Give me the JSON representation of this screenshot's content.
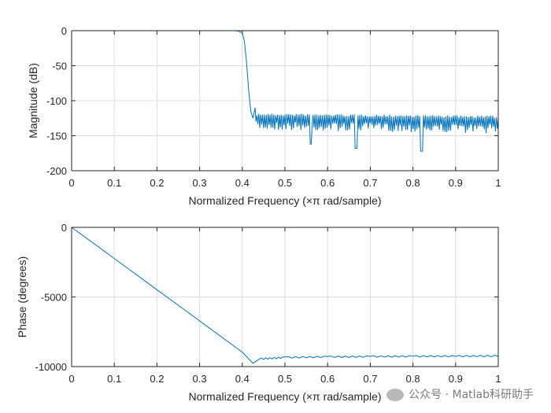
{
  "chart_data": [
    {
      "type": "line",
      "xlabel": "Normalized Frequency  (×π rad/sample)",
      "ylabel": "Magnitude (dB)",
      "xlim": [
        0,
        1
      ],
      "ylim": [
        -200,
        0
      ],
      "xticks": [
        "0",
        "0.1",
        "0.2",
        "0.3",
        "0.4",
        "0.5",
        "0.6",
        "0.7",
        "0.8",
        "0.9",
        "1"
      ],
      "yticks": [
        "0",
        "-50",
        "-100",
        "-150",
        "-200"
      ],
      "grid": true,
      "series": [
        {
          "x": [
            0,
            0.1,
            0.2,
            0.3,
            0.38,
            0.39,
            0.4,
            0.405,
            0.41,
            0.415,
            0.42,
            0.425,
            0.43,
            0.44,
            0.46,
            0.5,
            0.56,
            0.6,
            0.667,
            0.7,
            0.8,
            0.82,
            0.9,
            1.0
          ],
          "y": [
            0,
            0,
            0,
            0,
            0,
            -0.5,
            -3,
            -15,
            -45,
            -85,
            -115,
            -125,
            -110,
            -120,
            -125,
            -128,
            -162,
            -130,
            -168,
            -132,
            -135,
            -172,
            -138,
            -155
          ]
        }
      ],
      "floor": {
        "upper": -118,
        "lower": -130
      },
      "notches": [
        [
          0.56,
          -162
        ],
        [
          0.667,
          -168
        ],
        [
          0.82,
          -172
        ]
      ]
    },
    {
      "type": "line",
      "xlabel": "Normalized Frequency  (×π rad/sample)",
      "ylabel": "Phase (degrees)",
      "xlim": [
        0,
        1
      ],
      "ylim": [
        -10000,
        0
      ],
      "xticks": [
        "0",
        "0.1",
        "0.2",
        "0.3",
        "0.4",
        "0.5",
        "0.6",
        "0.7",
        "0.8",
        "0.9",
        "1"
      ],
      "yticks": [
        "0",
        "-5000",
        "-10000"
      ],
      "grid": true,
      "series": [
        {
          "x": [
            0,
            0.1,
            0.2,
            0.3,
            0.4,
            0.425,
            0.44,
            0.5,
            0.6,
            0.7,
            0.8,
            0.9,
            1.0
          ],
          "y": [
            0,
            -2240,
            -4480,
            -6720,
            -8960,
            -9760,
            -9450,
            -9350,
            -9300,
            -9280,
            -9260,
            -9250,
            -9240
          ]
        }
      ]
    }
  ],
  "watermark": {
    "text": "公众号 · Matlab科研助手",
    "icon": "wechat-icon"
  },
  "colors": {
    "line": "#0072bd",
    "grid": "#dcdcdc",
    "axes": "#262626"
  }
}
